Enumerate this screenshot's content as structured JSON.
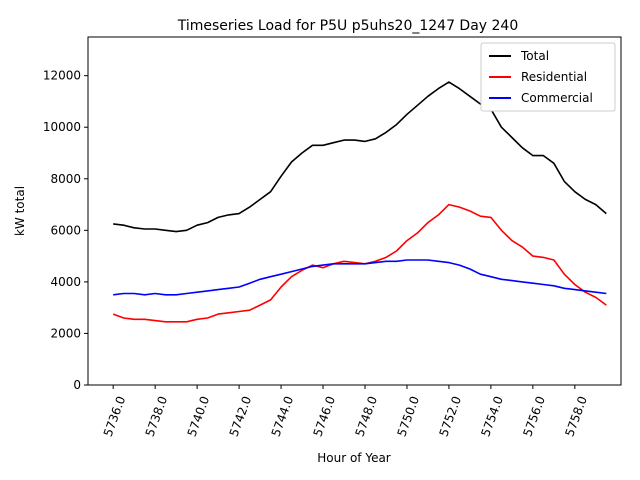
{
  "chart_data": {
    "type": "line",
    "title": "Timeseries Load for P5U p5uhs20_1247  Day 240",
    "xlabel": "Hour of Year",
    "ylabel": "kW total",
    "xlim": [
      5734.8,
      5760.2
    ],
    "ylim": [
      0,
      13500
    ],
    "x_ticks": [
      5736.0,
      5738.0,
      5740.0,
      5742.0,
      5744.0,
      5746.0,
      5748.0,
      5750.0,
      5752.0,
      5754.0,
      5756.0,
      5758.0
    ],
    "x_tick_labels": [
      "5736.0",
      "5738.0",
      "5740.0",
      "5742.0",
      "5744.0",
      "5746.0",
      "5748.0",
      "5750.0",
      "5752.0",
      "5754.0",
      "5756.0",
      "5758.0"
    ],
    "y_ticks": [
      0,
      2000,
      4000,
      6000,
      8000,
      10000,
      12000
    ],
    "y_tick_labels": [
      "0",
      "2000",
      "4000",
      "6000",
      "8000",
      "10000",
      "12000"
    ],
    "legend_position": "top-right",
    "grid": false,
    "series": [
      {
        "name": "Total",
        "color": "#000000",
        "x": [
          5736.0,
          5736.5,
          5737.0,
          5737.5,
          5738.0,
          5738.5,
          5739.0,
          5739.5,
          5740.0,
          5740.5,
          5741.0,
          5741.5,
          5742.0,
          5742.5,
          5743.0,
          5743.5,
          5744.0,
          5744.5,
          5745.0,
          5745.5,
          5746.0,
          5746.5,
          5747.0,
          5747.5,
          5748.0,
          5748.5,
          5749.0,
          5749.5,
          5750.0,
          5750.5,
          5751.0,
          5751.5,
          5752.0,
          5752.5,
          5753.0,
          5753.5,
          5754.0,
          5754.5,
          5755.0,
          5755.5,
          5756.0,
          5756.5,
          5757.0,
          5757.5,
          5758.0,
          5758.5,
          5759.0,
          5759.5
        ],
        "values": [
          6250,
          6200,
          6100,
          6050,
          6050,
          6000,
          5950,
          6000,
          6200,
          6300,
          6500,
          6600,
          6650,
          6900,
          7200,
          7500,
          8100,
          8650,
          9000,
          9300,
          9300,
          9400,
          9500,
          9500,
          9450,
          9550,
          9800,
          10100,
          10500,
          10850,
          11200,
          11500,
          11750,
          11500,
          11200,
          10900,
          10700,
          10000,
          9600,
          9200,
          8900,
          8900,
          8600,
          7900,
          7500,
          7200,
          7000,
          6650
        ]
      },
      {
        "name": "Residential",
        "color": "#ff0000",
        "x": [
          5736.0,
          5736.5,
          5737.0,
          5737.5,
          5738.0,
          5738.5,
          5739.0,
          5739.5,
          5740.0,
          5740.5,
          5741.0,
          5741.5,
          5742.0,
          5742.5,
          5743.0,
          5743.5,
          5744.0,
          5744.5,
          5745.0,
          5745.5,
          5746.0,
          5746.5,
          5747.0,
          5747.5,
          5748.0,
          5748.5,
          5749.0,
          5749.5,
          5750.0,
          5750.5,
          5751.0,
          5751.5,
          5752.0,
          5752.5,
          5753.0,
          5753.5,
          5754.0,
          5754.5,
          5755.0,
          5755.5,
          5756.0,
          5756.5,
          5757.0,
          5757.5,
          5758.0,
          5758.5,
          5759.0,
          5759.5
        ],
        "values": [
          2750,
          2600,
          2550,
          2550,
          2500,
          2450,
          2450,
          2450,
          2550,
          2600,
          2750,
          2800,
          2850,
          2900,
          3100,
          3300,
          3800,
          4200,
          4450,
          4650,
          4550,
          4700,
          4800,
          4750,
          4700,
          4800,
          4950,
          5200,
          5600,
          5900,
          6300,
          6600,
          7000,
          6900,
          6750,
          6550,
          6500,
          6000,
          5600,
          5350,
          5000,
          4950,
          4850,
          4300,
          3900,
          3600,
          3400,
          3100
        ]
      },
      {
        "name": "Commercial",
        "color": "#0000ff",
        "x": [
          5736.0,
          5736.5,
          5737.0,
          5737.5,
          5738.0,
          5738.5,
          5739.0,
          5739.5,
          5740.0,
          5740.5,
          5741.0,
          5741.5,
          5742.0,
          5742.5,
          5743.0,
          5743.5,
          5744.0,
          5744.5,
          5745.0,
          5745.5,
          5746.0,
          5746.5,
          5747.0,
          5747.5,
          5748.0,
          5748.5,
          5749.0,
          5749.5,
          5750.0,
          5750.5,
          5751.0,
          5751.5,
          5752.0,
          5752.5,
          5753.0,
          5753.5,
          5754.0,
          5754.5,
          5755.0,
          5755.5,
          5756.0,
          5756.5,
          5757.0,
          5757.5,
          5758.0,
          5758.5,
          5759.0,
          5759.5
        ],
        "values": [
          3500,
          3550,
          3550,
          3500,
          3550,
          3500,
          3500,
          3550,
          3600,
          3650,
          3700,
          3750,
          3800,
          3950,
          4100,
          4200,
          4300,
          4400,
          4500,
          4600,
          4650,
          4700,
          4700,
          4700,
          4700,
          4750,
          4800,
          4800,
          4850,
          4850,
          4850,
          4800,
          4750,
          4650,
          4500,
          4300,
          4200,
          4100,
          4050,
          4000,
          3950,
          3900,
          3850,
          3750,
          3700,
          3650,
          3600,
          3550
        ]
      }
    ]
  }
}
